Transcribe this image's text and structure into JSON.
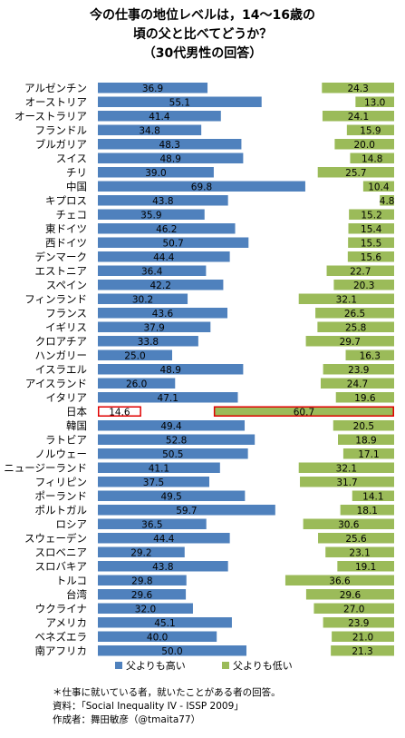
{
  "title": {
    "line1": "今の仕事の地位レベルは，14～16歳の",
    "line2": "頃の父と比べてどうか？",
    "line3": "（30代男性の回答）"
  },
  "legend": {
    "higher": "父よりも高い",
    "lower": "父よりも低い"
  },
  "notes": {
    "note": "＊仕事に就いている者，就いたことがある者の回答。",
    "source": "資料：「Social Inequality IV - ISSP 2009」",
    "author": "作成者：舞田敏彦（@tmaita77）"
  },
  "colors": {
    "higher": "#4f81bd",
    "lower": "#9bbb59",
    "highlight": "#e00000"
  },
  "chart_data": {
    "type": "bar",
    "highlight": "日本",
    "categories": [
      "アルゼンチン",
      "オーストリア",
      "オーストラリア",
      "フランドル",
      "ブルガリア",
      "スイス",
      "チリ",
      "中国",
      "キプロス",
      "チェコ",
      "東ドイツ",
      "西ドイツ",
      "デンマーク",
      "エストニア",
      "スペイン",
      "フィンランド",
      "フランス",
      "イギリス",
      "クロアチア",
      "ハンガリー",
      "イスラエル",
      "アイスランド",
      "イタリア",
      "日本",
      "韓国",
      "ラトビア",
      "ノルウェー",
      "ニュージーランド",
      "フィリピン",
      "ポーランド",
      "ポルトガル",
      "ロシア",
      "スウェーデン",
      "スロベニア",
      "スロバキア",
      "トルコ",
      "台湾",
      "ウクライナ",
      "アメリカ",
      "ベネズエラ",
      "南アフリカ"
    ],
    "series": [
      {
        "name": "父よりも高い",
        "values": [
          36.9,
          55.1,
          41.4,
          34.8,
          48.3,
          48.9,
          39.0,
          69.8,
          43.8,
          35.9,
          46.2,
          50.7,
          44.4,
          36.4,
          42.2,
          30.2,
          43.6,
          37.9,
          33.8,
          25.0,
          48.9,
          26.0,
          47.1,
          14.6,
          49.4,
          52.8,
          50.5,
          41.1,
          37.5,
          49.5,
          59.7,
          36.5,
          44.4,
          29.2,
          43.8,
          29.8,
          29.6,
          32.0,
          45.1,
          40.0,
          50.0
        ]
      },
      {
        "name": "父よりも低い",
        "values": [
          24.3,
          13.0,
          24.1,
          15.9,
          20.0,
          14.8,
          25.7,
          10.4,
          4.8,
          15.2,
          15.4,
          15.5,
          15.6,
          22.7,
          20.3,
          32.1,
          26.5,
          25.8,
          29.7,
          16.3,
          23.9,
          24.7,
          19.6,
          60.7,
          20.5,
          18.9,
          17.1,
          32.1,
          31.7,
          14.1,
          18.1,
          30.6,
          25.6,
          23.1,
          19.1,
          36.6,
          29.6,
          27.0,
          23.9,
          21.0,
          21.3
        ]
      }
    ]
  }
}
